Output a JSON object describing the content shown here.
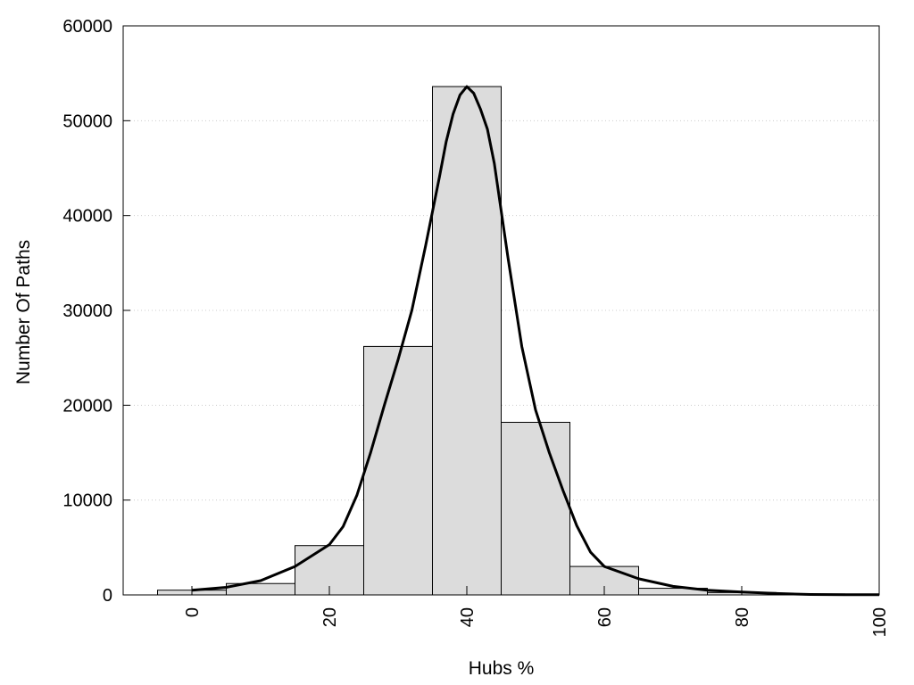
{
  "chart_data": {
    "type": "bar",
    "title": "",
    "xlabel": "Hubs %",
    "ylabel": "Number Of Paths",
    "xlim": [
      -10,
      100
    ],
    "ylim": [
      0,
      60000
    ],
    "x_ticks": [
      0,
      20,
      40,
      60,
      80,
      100
    ],
    "y_ticks": [
      0,
      10000,
      20000,
      30000,
      40000,
      50000,
      60000
    ],
    "grid": "horizontal dotted",
    "bar_width": 10,
    "bars": [
      {
        "x": 0,
        "value": 500
      },
      {
        "x": 10,
        "value": 1200
      },
      {
        "x": 20,
        "value": 5200
      },
      {
        "x": 30,
        "value": 26200
      },
      {
        "x": 40,
        "value": 53600
      },
      {
        "x": 50,
        "value": 18200
      },
      {
        "x": 60,
        "value": 3000
      },
      {
        "x": 70,
        "value": 700
      },
      {
        "x": 80,
        "value": 250
      },
      {
        "x": 90,
        "value": 100
      }
    ],
    "curve": {
      "type": "line",
      "x": [
        0,
        5,
        10,
        15,
        20,
        22,
        24,
        26,
        28,
        30,
        32,
        34,
        36,
        37,
        38,
        39,
        40,
        41,
        42,
        43,
        44,
        46,
        48,
        50,
        52,
        54,
        56,
        58,
        60,
        65,
        70,
        75,
        80,
        85,
        90,
        95,
        100
      ],
      "y": [
        500,
        800,
        1500,
        3000,
        5300,
        7200,
        10500,
        15000,
        20000,
        24800,
        30000,
        36800,
        44000,
        47800,
        50700,
        52700,
        53600,
        52900,
        51200,
        49100,
        45500,
        35500,
        26200,
        19500,
        15000,
        11000,
        7300,
        4500,
        3000,
        1700,
        900,
        500,
        300,
        150,
        50,
        20,
        20
      ]
    },
    "colors": {
      "bar_fill": "#dcdcdc",
      "bar_stroke": "#000000",
      "line": "#000000",
      "grid": "#cccccc"
    }
  }
}
